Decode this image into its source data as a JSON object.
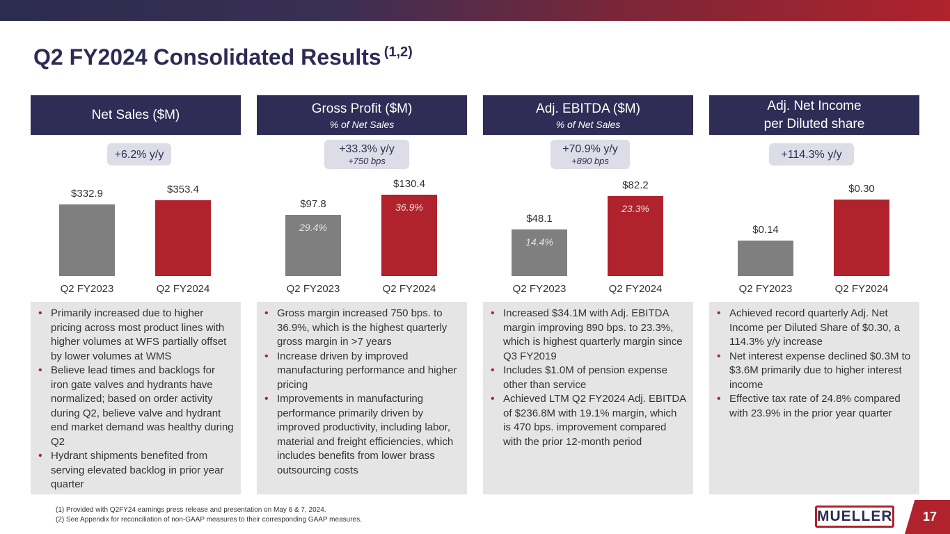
{
  "title": "Q2 FY2024 Consolidated Results",
  "title_sup": "(1,2)",
  "colors": {
    "navy": "#2f2c55",
    "red": "#b0222c",
    "gray": "#7f7f7f"
  },
  "panels": [
    {
      "heading": "Net Sales ($M)",
      "subheading": "",
      "pill": "+6.2% y/y",
      "pill_sub": "",
      "chart_data": {
        "type": "bar",
        "categories": [
          "Q2 FY2023",
          "Q2 FY2024"
        ],
        "values": [
          332.9,
          353.4
        ],
        "value_labels": [
          "$332.9",
          "$353.4"
        ],
        "pct_labels": [
          "",
          ""
        ],
        "ylim": [
          0,
          485
        ]
      },
      "bullets": [
        "Primarily increased due to higher pricing across most product lines with higher volumes at WFS partially offset by lower volumes at WMS",
        "Believe lead times and backlogs for iron gate valves and hydrants have normalized; based on order activity during Q2, believe valve and hydrant end market demand was healthy during Q2",
        "Hydrant shipments benefited from serving elevated backlog in prior year quarter"
      ]
    },
    {
      "heading": "Gross Profit ($M)",
      "subheading": "% of Net Sales",
      "pill": "+33.3% y/y",
      "pill_sub": "+750 bps",
      "chart_data": {
        "type": "bar",
        "categories": [
          "Q2 FY2023",
          "Q2 FY2024"
        ],
        "values": [
          97.8,
          130.4
        ],
        "value_labels": [
          "$97.8",
          "$130.4"
        ],
        "pct_labels": [
          "29.4%",
          "36.9%"
        ],
        "ylim": [
          0,
          167
        ]
      },
      "bullets": [
        "Gross margin increased 750 bps. to 36.9%, which is the highest quarterly gross margin in >7 years",
        "Increase driven by improved manufacturing performance and higher pricing",
        "Improvements in manufacturing performance primarily driven by improved productivity, including labor, material and freight efficiencies, which includes benefits from lower brass outsourcing costs"
      ]
    },
    {
      "heading": "Adj. EBITDA ($M)",
      "subheading": "% of Net Sales",
      "pill": "+70.9% y/y",
      "pill_sub": "+890 bps",
      "chart_data": {
        "type": "bar",
        "categories": [
          "Q2 FY2023",
          "Q2 FY2024"
        ],
        "values": [
          48.1,
          82.2
        ],
        "value_labels": [
          "$48.1",
          "$82.2"
        ],
        "pct_labels": [
          "14.4%",
          "23.3%"
        ],
        "ylim": [
          0,
          107
        ]
      },
      "bullets": [
        "Increased $34.1M with Adj. EBITDA margin improving 890 bps. to 23.3%, which is highest quarterly margin since Q3 FY2019",
        "Includes $1.0M of pension expense other than service",
        "Achieved LTM Q2 FY2024 Adj. EBITDA of $236.8M with 19.1% margin, which is 470 bps. improvement compared with the prior 12-month period"
      ]
    },
    {
      "heading": "Adj. Net Income",
      "subheading": "per Diluted share",
      "pill": "+114.3% y/y",
      "pill_sub": "",
      "chart_data": {
        "type": "bar",
        "categories": [
          "Q2 FY2023",
          "Q2 FY2024"
        ],
        "values": [
          0.14,
          0.3
        ],
        "value_labels": [
          "$0.14",
          "$0.30"
        ],
        "pct_labels": [
          "",
          ""
        ],
        "ylim": [
          0,
          0.41
        ]
      },
      "bullets": [
        "Achieved record quarterly Adj. Net Income per Diluted Share of $0.30, a 114.3% y/y increase",
        "Net interest expense declined $0.3M to $3.6M primarily due to higher interest income",
        "Effective tax rate of 24.8% compared with 23.9% in the prior year quarter"
      ]
    }
  ],
  "footnotes": [
    "(1)  Provided with Q2FY24 earnings press release and presentation on May 6 & 7, 2024.",
    "(2)  See Appendix for reconciliation of non-GAAP measures to their corresponding GAAP measures."
  ],
  "logo": "MUELLER",
  "page_number": "17"
}
